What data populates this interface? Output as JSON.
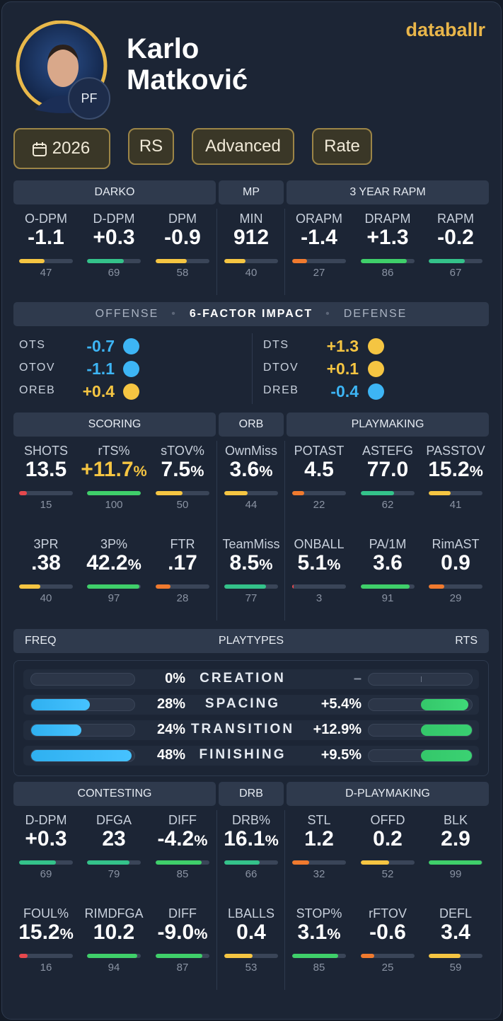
{
  "brand": "databallr",
  "player": {
    "first_name": "Karlo",
    "last_name": "Matković",
    "position": "PF"
  },
  "filters": [
    "2026",
    "RS",
    "Advanced",
    "Rate"
  ],
  "stat_groups": [
    {
      "headers": [
        "DARKO",
        "MP",
        "3 YEAR RAPM"
      ],
      "rows": [
        [
          {
            "label": "O-DPM",
            "value": "-1.1",
            "pct": 47
          },
          {
            "label": "D-DPM",
            "value": "+0.3",
            "pct": 69
          },
          {
            "label": "DPM",
            "value": "-0.9",
            "pct": 58
          },
          {
            "label": "MIN",
            "value": "912",
            "pct": 40
          },
          {
            "label": "ORAPM",
            "value": "-1.4",
            "pct": 27
          },
          {
            "label": "DRAPM",
            "value": "+1.3",
            "pct": 86
          },
          {
            "label": "RAPM",
            "value": "-0.2",
            "pct": 67
          }
        ]
      ]
    },
    {
      "headers": [
        "SCORING",
        "ORB",
        "PLAYMAKING"
      ],
      "rows": [
        [
          {
            "label": "SHOTS",
            "value": "13.5",
            "pct": 15
          },
          {
            "label": "rTS%",
            "value": "+11.7%",
            "pct": 100,
            "color": "#f5c542"
          },
          {
            "label": "sTOV%",
            "value": "7.5%",
            "pct": 50
          },
          {
            "label": "OwnMiss",
            "value": "3.6%",
            "pct": 44
          },
          {
            "label": "POTAST",
            "value": "4.5",
            "pct": 22
          },
          {
            "label": "ASTEFG",
            "value": "77.0",
            "pct": 62
          },
          {
            "label": "PASSTOV",
            "value": "15.2%",
            "pct": 41
          }
        ],
        [
          {
            "label": "3PR",
            "value": ".38",
            "pct": 40
          },
          {
            "label": "3P%",
            "value": "42.2%",
            "pct": 97
          },
          {
            "label": "FTR",
            "value": ".17",
            "pct": 28
          },
          {
            "label": "TeamMiss",
            "value": "8.5%",
            "pct": 77
          },
          {
            "label": "ONBALL",
            "value": "5.1%",
            "pct": 3
          },
          {
            "label": "PA/1M",
            "value": "3.6",
            "pct": 91
          },
          {
            "label": "RimAST",
            "value": "0.9",
            "pct": 29
          }
        ]
      ]
    },
    {
      "headers": [
        "CONTESTING",
        "DRB",
        "D-PLAYMAKING"
      ],
      "rows": [
        [
          {
            "label": "D-DPM",
            "value": "+0.3",
            "pct": 69
          },
          {
            "label": "DFGA",
            "value": "23",
            "pct": 79
          },
          {
            "label": "DIFF",
            "value": "-4.2%",
            "pct": 85
          },
          {
            "label": "DRB%",
            "value": "16.1%",
            "pct": 66
          },
          {
            "label": "STL",
            "value": "1.2",
            "pct": 32
          },
          {
            "label": "OFFD",
            "value": "0.2",
            "pct": 52
          },
          {
            "label": "BLK",
            "value": "2.9",
            "pct": 99
          }
        ],
        [
          {
            "label": "FOUL%",
            "value": "15.2%",
            "pct": 16
          },
          {
            "label": "RIMDFGA",
            "value": "10.2",
            "pct": 94
          },
          {
            "label": "DIFF",
            "value": "-9.0%",
            "pct": 87
          },
          {
            "label": "LBALLS",
            "value": "0.4",
            "pct": 53
          },
          {
            "label": "STOP%",
            "value": "3.1%",
            "pct": 85
          },
          {
            "label": "rFTOV",
            "value": "-0.6",
            "pct": 25
          },
          {
            "label": "DEFL",
            "value": "3.4",
            "pct": 59
          }
        ]
      ]
    }
  ],
  "impact": {
    "headers": [
      "OFFENSE",
      "6-FACTOR IMPACT",
      "DEFENSE"
    ],
    "offense": [
      {
        "label": "OTS",
        "value": "-0.7",
        "color": "#3db5f5"
      },
      {
        "label": "OTOV",
        "value": "-1.1",
        "color": "#3db5f5"
      },
      {
        "label": "OREB",
        "value": "+0.4",
        "color": "#f5c542"
      }
    ],
    "defense": [
      {
        "label": "DTS",
        "value": "+1.3",
        "color": "#f5c542"
      },
      {
        "label": "DTOV",
        "value": "+0.1",
        "color": "#f5c542"
      },
      {
        "label": "DREB",
        "value": "-0.4",
        "color": "#3db5f5"
      }
    ]
  },
  "playtypes": {
    "headers": [
      "FREQ",
      "PLAYTYPES",
      "RTS"
    ],
    "freq_lim": [
      0,
      50
    ],
    "rts_lim": [
      -6,
      6
    ],
    "rows": [
      {
        "name": "CREATION",
        "freq": {
          "value": 0,
          "label": "0%"
        },
        "rts": {
          "value": null,
          "label": "–"
        }
      },
      {
        "name": "SPACING",
        "freq": {
          "value": 28,
          "label": "28%"
        },
        "rts": {
          "value": 5.4,
          "label": "+5.4%"
        }
      },
      {
        "name": "TRANSITION",
        "freq": {
          "value": 24,
          "label": "24%"
        },
        "rts": {
          "value": 12.9,
          "label": "+12.9%"
        }
      },
      {
        "name": "FINISHING",
        "freq": {
          "value": 48,
          "label": "48%"
        },
        "rts": {
          "value": 9.5,
          "label": "+9.5%"
        }
      }
    ]
  }
}
